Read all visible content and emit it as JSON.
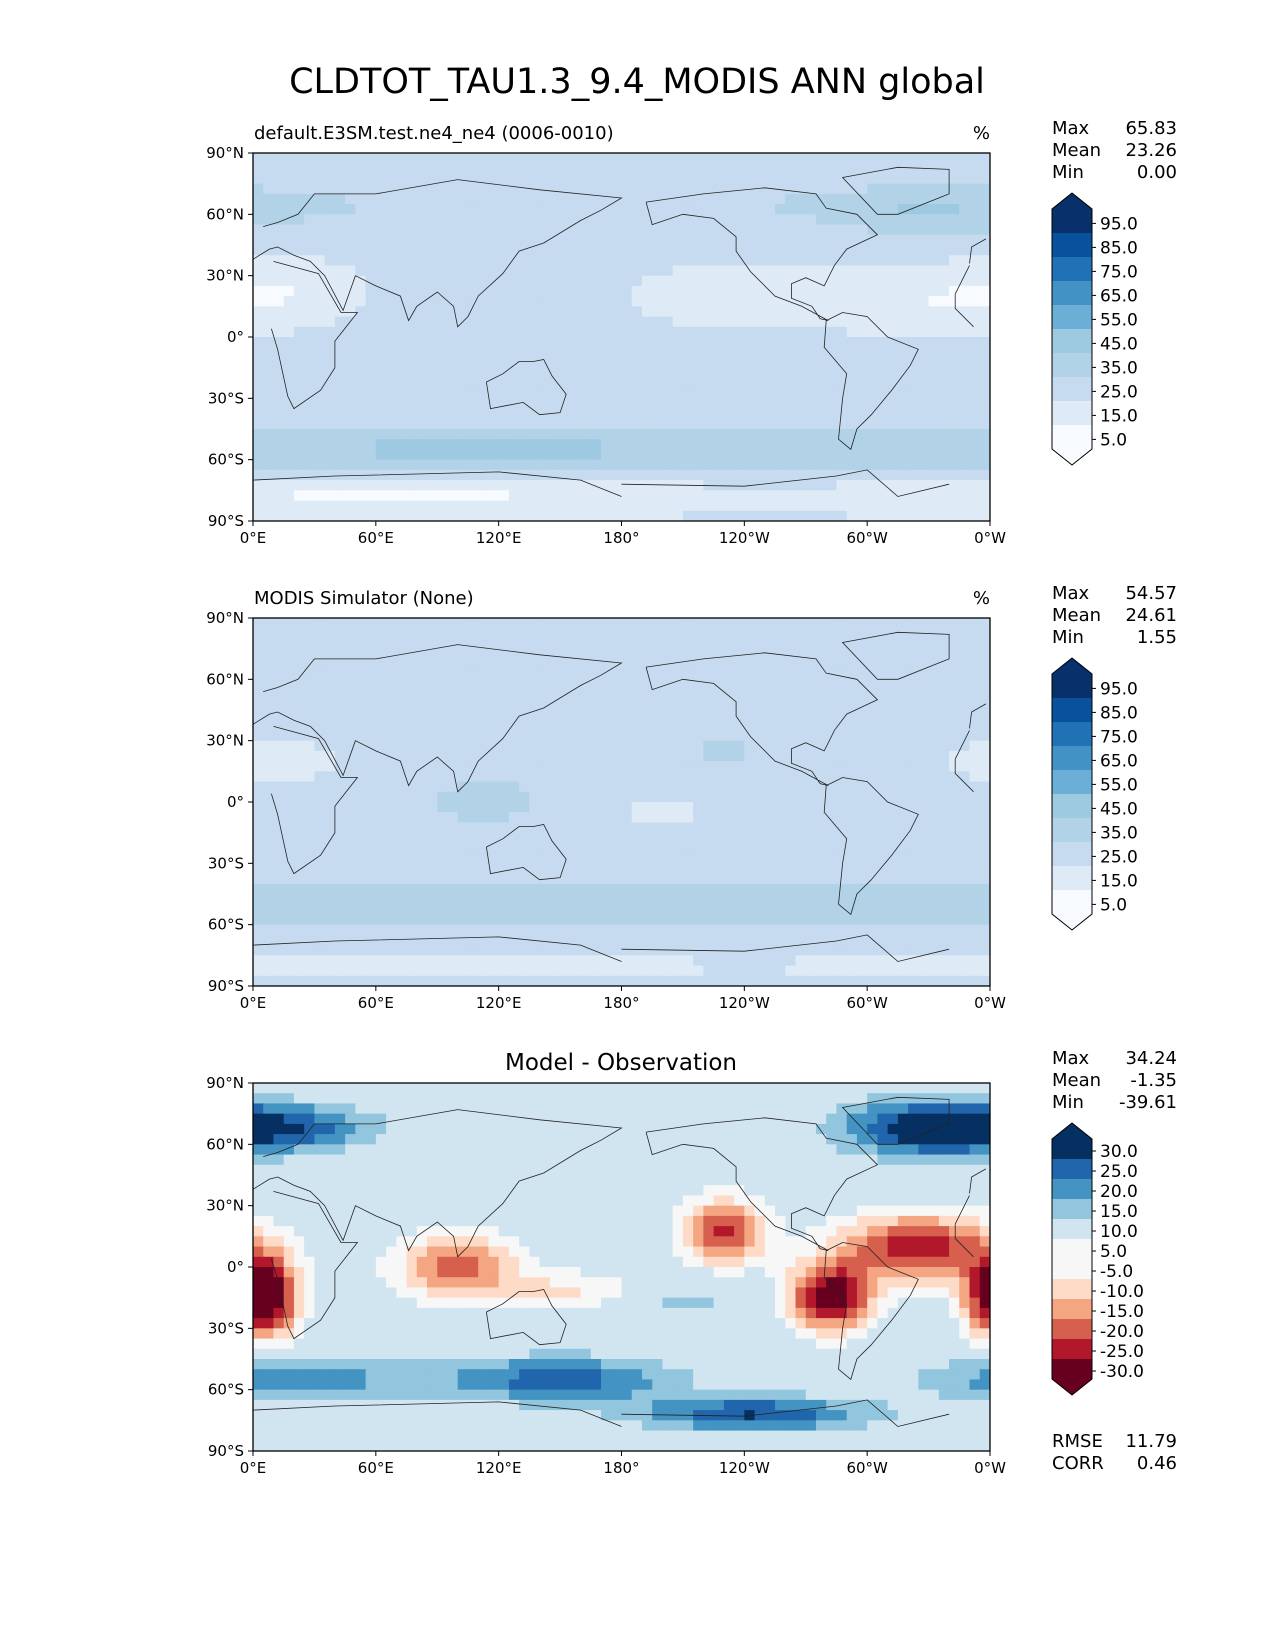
{
  "figure": {
    "title": "CLDTOT_TAU1.3_9.4_MODIS ANN global"
  },
  "colors": {
    "seq": [
      "#f7fbff",
      "#deebf7",
      "#c6dbef",
      "#b2d2e8",
      "#9ecae1",
      "#6baed6",
      "#4292c6",
      "#2171b5",
      "#08519c",
      "#08306b"
    ],
    "div_neg": [
      "#67001f",
      "#b2182b",
      "#d6604d",
      "#f4a582",
      "#fddbc7"
    ],
    "div_mid": "#f7f7f7",
    "div_pos": [
      "#d1e5f0",
      "#92c5de",
      "#4393c3",
      "#2166ac",
      "#053061"
    ]
  },
  "axes": {
    "yticks": [
      "90°N",
      "60°N",
      "30°N",
      "0°",
      "30°S",
      "60°S",
      "90°S"
    ],
    "xticks": [
      "0°E",
      "60°E",
      "120°E",
      "180°",
      "120°W",
      "60°W",
      "0°W"
    ]
  },
  "panels": [
    {
      "left_title": "default.E3SM.test.ne4_ne4 (0006-0010)",
      "center_title": "",
      "unit": "%",
      "stats": [
        {
          "label": "Max",
          "value": "65.83"
        },
        {
          "label": "Mean",
          "value": "23.26"
        },
        {
          "label": "Min",
          "value": "0.00"
        }
      ],
      "colorbar": {
        "type": "sequential",
        "labels": [
          "95.0",
          "85.0",
          "75.0",
          "65.0",
          "55.0",
          "45.0",
          "35.0",
          "25.0",
          "15.0",
          "5.0"
        ]
      },
      "extra_stats": []
    },
    {
      "left_title": "MODIS Simulator (None)",
      "center_title": "",
      "unit": "%",
      "stats": [
        {
          "label": "Max",
          "value": "54.57"
        },
        {
          "label": "Mean",
          "value": "24.61"
        },
        {
          "label": "Min",
          "value": "1.55"
        }
      ],
      "colorbar": {
        "type": "sequential",
        "labels": [
          "95.0",
          "85.0",
          "75.0",
          "65.0",
          "55.0",
          "45.0",
          "35.0",
          "25.0",
          "15.0",
          "5.0"
        ]
      },
      "extra_stats": []
    },
    {
      "left_title": "",
      "center_title": "Model - Observation",
      "unit": "",
      "stats": [
        {
          "label": "Max",
          "value": "34.24"
        },
        {
          "label": "Mean",
          "value": "-1.35"
        },
        {
          "label": "Min",
          "value": "-39.61"
        }
      ],
      "colorbar": {
        "type": "diverging",
        "labels": [
          "30.0",
          "25.0",
          "20.0",
          "15.0",
          "10.0",
          "5.0",
          "-5.0",
          "-10.0",
          "-15.0",
          "-20.0",
          "-25.0",
          "-30.0"
        ]
      },
      "extra_stats": [
        {
          "label": "RMSE",
          "value": "11.79"
        },
        {
          "label": "CORR",
          "value": "0.46"
        }
      ]
    }
  ],
  "chart_data": [
    {
      "type": "heatmap",
      "title": "default.E3SM.test.ne4_ne4 (0006-0010)",
      "units": "%",
      "x_range": [
        0,
        360
      ],
      "y_range": [
        -90,
        90
      ],
      "colorbar_levels": [
        5,
        15,
        25,
        35,
        45,
        55,
        65,
        75,
        85,
        95
      ],
      "max": 65.83,
      "mean": 23.26,
      "min": 0.0
    },
    {
      "type": "heatmap",
      "title": "MODIS Simulator (None)",
      "units": "%",
      "x_range": [
        0,
        360
      ],
      "y_range": [
        -90,
        90
      ],
      "colorbar_levels": [
        5,
        15,
        25,
        35,
        45,
        55,
        65,
        75,
        85,
        95
      ],
      "max": 54.57,
      "mean": 24.61,
      "min": 1.55
    },
    {
      "type": "heatmap",
      "title": "Model - Observation",
      "x_range": [
        0,
        360
      ],
      "y_range": [
        -90,
        90
      ],
      "colorbar_levels": [
        -30,
        -25,
        -20,
        -15,
        -10,
        -5,
        5,
        10,
        15,
        20,
        25,
        30
      ],
      "max": 34.24,
      "mean": -1.35,
      "min": -39.61,
      "rmse": 11.79,
      "corr": 0.46
    }
  ]
}
